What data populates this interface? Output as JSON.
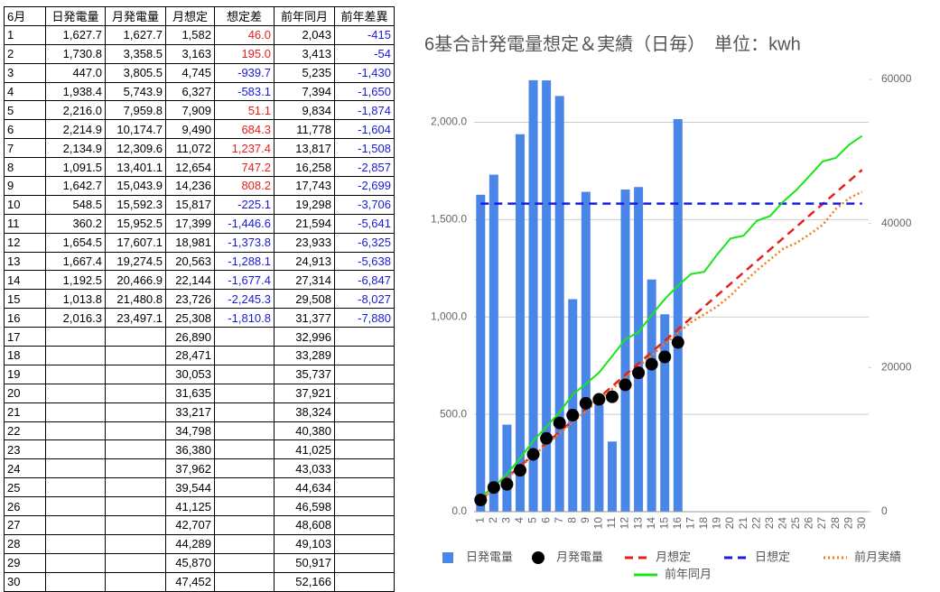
{
  "table": {
    "header": [
      "6月",
      "日発電量",
      "月発電量",
      "月想定",
      "想定差",
      "前年同月",
      "前年差異"
    ],
    "rows": [
      [
        "1",
        "1,627.7",
        "1,627.7",
        "1,582",
        "46.0",
        "2,043",
        "-415"
      ],
      [
        "2",
        "1,730.8",
        "3,358.5",
        "3,163",
        "195.0",
        "3,413",
        "-54"
      ],
      [
        "3",
        "447.0",
        "3,805.5",
        "4,745",
        "-939.7",
        "5,235",
        "-1,430"
      ],
      [
        "4",
        "1,938.4",
        "5,743.9",
        "6,327",
        "-583.1",
        "7,394",
        "-1,650"
      ],
      [
        "5",
        "2,216.0",
        "7,959.8",
        "7,909",
        "51.1",
        "9,834",
        "-1,874"
      ],
      [
        "6",
        "2,214.9",
        "10,174.7",
        "9,490",
        "684.3",
        "11,778",
        "-1,604"
      ],
      [
        "7",
        "2,134.9",
        "12,309.6",
        "11,072",
        "1,237.4",
        "13,817",
        "-1,508"
      ],
      [
        "8",
        "1,091.5",
        "13,401.1",
        "12,654",
        "747.2",
        "16,258",
        "-2,857"
      ],
      [
        "9",
        "1,642.7",
        "15,043.9",
        "14,236",
        "808.2",
        "17,743",
        "-2,699"
      ],
      [
        "10",
        "548.5",
        "15,592.3",
        "15,817",
        "-225.1",
        "19,298",
        "-3,706"
      ],
      [
        "11",
        "360.2",
        "15,952.5",
        "17,399",
        "-1,446.6",
        "21,594",
        "-5,641"
      ],
      [
        "12",
        "1,654.5",
        "17,607.1",
        "18,981",
        "-1,373.8",
        "23,933",
        "-6,325"
      ],
      [
        "13",
        "1,667.4",
        "19,274.5",
        "20,563",
        "-1,288.1",
        "24,913",
        "-5,638"
      ],
      [
        "14",
        "1,192.5",
        "20,466.9",
        "22,144",
        "-1,677.4",
        "27,314",
        "-6,847"
      ],
      [
        "15",
        "1,013.8",
        "21,480.8",
        "23,726",
        "-2,245.3",
        "29,508",
        "-8,027"
      ],
      [
        "16",
        "2,016.3",
        "23,497.1",
        "25,308",
        "-1,810.8",
        "31,377",
        "-7,880"
      ],
      [
        "17",
        null,
        null,
        "26,890",
        null,
        "32,996",
        null
      ],
      [
        "18",
        null,
        null,
        "28,471",
        null,
        "33,289",
        null
      ],
      [
        "19",
        null,
        null,
        "30,053",
        null,
        "35,737",
        null
      ],
      [
        "20",
        null,
        null,
        "31,635",
        null,
        "37,921",
        null
      ],
      [
        "21",
        null,
        null,
        "33,217",
        null,
        "38,324",
        null
      ],
      [
        "22",
        null,
        null,
        "34,798",
        null,
        "40,380",
        null
      ],
      [
        "23",
        null,
        null,
        "36,380",
        null,
        "41,025",
        null
      ],
      [
        "24",
        null,
        null,
        "37,962",
        null,
        "43,033",
        null
      ],
      [
        "25",
        null,
        null,
        "39,544",
        null,
        "44,634",
        null
      ],
      [
        "26",
        null,
        null,
        "41,125",
        null,
        "46,598",
        null
      ],
      [
        "27",
        null,
        null,
        "42,707",
        null,
        "48,608",
        null
      ],
      [
        "28",
        null,
        null,
        "44,289",
        null,
        "49,103",
        null
      ],
      [
        "29",
        null,
        null,
        "45,870",
        null,
        "50,917",
        null
      ],
      [
        "30",
        null,
        null,
        "47,452",
        null,
        "52,166",
        null
      ]
    ]
  },
  "chart_data": {
    "type": "combo",
    "title": "6基合計発電量想定＆実績（日毎）　単位：kwh",
    "categories": [
      "1",
      "2",
      "3",
      "4",
      "5",
      "6",
      "7",
      "8",
      "9",
      "10",
      "11",
      "12",
      "13",
      "14",
      "15",
      "16",
      "17",
      "18",
      "19",
      "20",
      "21",
      "22",
      "23",
      "24",
      "25",
      "26",
      "27",
      "28",
      "29",
      "30"
    ],
    "ylim": [
      0,
      2220
    ],
    "yticks": [
      {
        "value": 0,
        "label": "0.0"
      },
      {
        "value": 500,
        "label": "500.0"
      },
      {
        "value": 1000,
        "label": "1,000.0"
      },
      {
        "value": 1500,
        "label": "1,500.0"
      },
      {
        "value": 2000,
        "label": "2,000.0"
      }
    ],
    "y2lim": [
      0,
      60000
    ],
    "y2ticks": [
      0,
      20000,
      40000,
      60000
    ],
    "grid": true,
    "series": [
      {
        "name": "日発電量",
        "type": "bar",
        "color": "#4a86e8",
        "axis": "y",
        "values": [
          1627.7,
          1730.8,
          447.0,
          1938.4,
          2216.0,
          2214.9,
          2134.9,
          1091.5,
          1642.7,
          548.5,
          360.2,
          1654.5,
          1667.4,
          1192.5,
          1013.8,
          2016.3,
          null,
          null,
          null,
          null,
          null,
          null,
          null,
          null,
          null,
          null,
          null,
          null,
          null,
          null
        ]
      },
      {
        "name": "月発電量",
        "type": "scatter",
        "color": "#000000",
        "axis": "y2",
        "values": [
          1627.7,
          3358.5,
          3805.5,
          5743.9,
          7959.8,
          10174.7,
          12309.6,
          13401.1,
          15043.9,
          15592.3,
          15952.5,
          17607.1,
          19274.5,
          20466.9,
          21480.8,
          23497.1,
          null,
          null,
          null,
          null,
          null,
          null,
          null,
          null,
          null,
          null,
          null,
          null,
          null,
          null
        ]
      },
      {
        "name": "月想定",
        "type": "line",
        "style": "dashed",
        "color": "#e8201c",
        "axis": "y2",
        "values": [
          1582,
          3163,
          4745,
          6327,
          7909,
          9490,
          11072,
          12654,
          14236,
          15817,
          17399,
          18981,
          20563,
          22144,
          23726,
          25308,
          26890,
          28471,
          30053,
          31635,
          33217,
          34798,
          36380,
          37962,
          39544,
          41125,
          42707,
          44289,
          45870,
          47452
        ]
      },
      {
        "name": "日想定",
        "type": "line",
        "style": "dashed",
        "color": "#1a1ae6",
        "axis": "y",
        "values": [
          1582,
          1582,
          1582,
          1582,
          1582,
          1582,
          1582,
          1582,
          1582,
          1582,
          1582,
          1582,
          1582,
          1582,
          1582,
          1582,
          1582,
          1582,
          1582,
          1582,
          1582,
          1582,
          1582,
          1582,
          1582,
          1582,
          1582,
          1582,
          1582,
          1582
        ]
      },
      {
        "name": "前月実績",
        "type": "line",
        "style": "dotted",
        "color": "#f07d1a",
        "axis": "y2",
        "values": [
          1550,
          3100,
          4650,
          6200,
          7750,
          9300,
          10850,
          12400,
          13950,
          15500,
          17050,
          18600,
          20150,
          21700,
          23250,
          24800,
          26300,
          27400,
          28500,
          30000,
          31800,
          33500,
          35000,
          36500,
          37300,
          38500,
          39800,
          42000,
          43500,
          44400
        ]
      },
      {
        "name": "前年同月",
        "type": "line",
        "style": "solid",
        "color": "#19e619",
        "axis": "y2",
        "values": [
          2043,
          3413,
          5235,
          7394,
          9834,
          11778,
          13817,
          16258,
          17743,
          19298,
          21594,
          23933,
          24913,
          27314,
          29508,
          31377,
          32996,
          33289,
          35737,
          37921,
          38324,
          40380,
          41025,
          43033,
          44634,
          46598,
          48608,
          49103,
          50917,
          52166
        ]
      }
    ]
  }
}
